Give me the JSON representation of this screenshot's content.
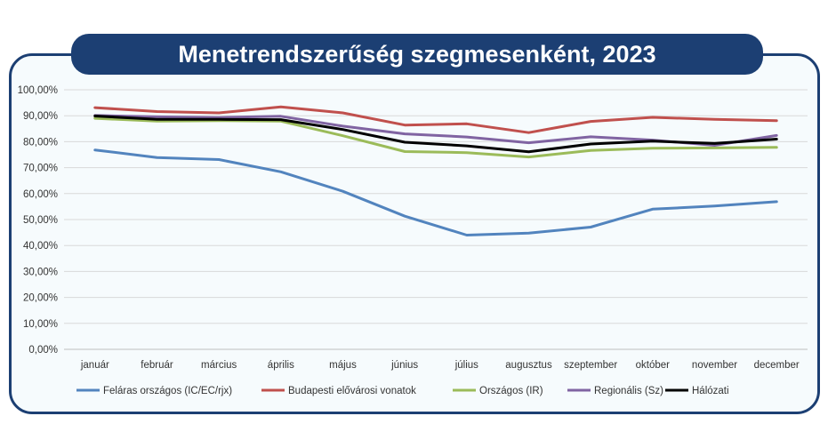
{
  "chart_data": {
    "type": "line",
    "title": "Menetrendszerűség szegmesenként, 2023",
    "xlabel": "",
    "ylabel": "",
    "ylim": [
      0,
      100
    ],
    "y_tick_labels": [
      "0,00%",
      "10,00%",
      "20,00%",
      "30,00%",
      "40,00%",
      "50,00%",
      "60,00%",
      "70,00%",
      "80,00%",
      "90,00%",
      "100,00%"
    ],
    "categories": [
      "január",
      "február",
      "március",
      "április",
      "május",
      "június",
      "július",
      "augusztus",
      "szeptember",
      "október",
      "november",
      "december"
    ],
    "grid": true,
    "legend_position": "bottom",
    "series": [
      {
        "name": "Feláras országos (IC/EC/rjx)",
        "color": "#5284be",
        "values": [
          76.8,
          73.9,
          73.1,
          68.4,
          60.9,
          51.3,
          44.0,
          44.8,
          47.1,
          54.0,
          55.2,
          56.9
        ]
      },
      {
        "name": "Budapesti elővárosi vonatok",
        "color": "#c0504d",
        "values": [
          93.1,
          91.6,
          91.1,
          93.4,
          91.1,
          86.4,
          86.9,
          83.5,
          87.8,
          89.4,
          88.6,
          88.1
        ]
      },
      {
        "name": "Országos (IR)",
        "color": "#9bbb59",
        "values": [
          89.0,
          87.9,
          88.1,
          87.9,
          82.3,
          76.2,
          75.8,
          74.1,
          76.6,
          77.5,
          77.6,
          77.8
        ]
      },
      {
        "name": "Regionális (Sz)",
        "color": "#8064a2",
        "values": [
          90.1,
          89.6,
          89.3,
          89.8,
          86.0,
          83.0,
          81.8,
          79.6,
          81.9,
          80.6,
          78.6,
          82.4
        ]
      },
      {
        "name": "Hálózati",
        "color": "#000000",
        "values": [
          89.9,
          88.6,
          88.6,
          88.5,
          84.7,
          79.8,
          78.4,
          76.1,
          79.1,
          80.2,
          79.3,
          81.0
        ]
      }
    ]
  }
}
